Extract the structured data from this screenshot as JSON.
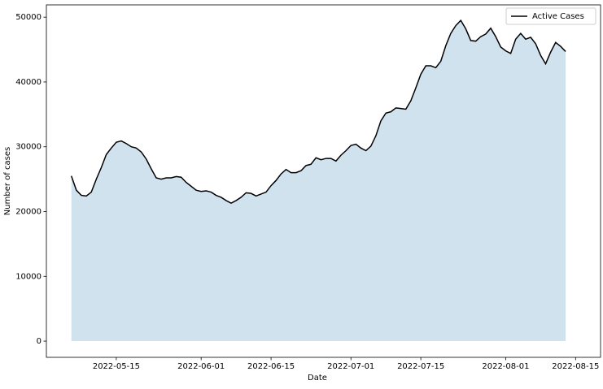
{
  "chart_data": {
    "type": "area-line",
    "x_label": "Date",
    "y_label": "Number of cases",
    "series": [
      {
        "name": "Active Cases",
        "color": "#000000",
        "fill_color": "#d1e2ef",
        "x": [
          "2022-05-06",
          "2022-05-07",
          "2022-05-08",
          "2022-05-09",
          "2022-05-10",
          "2022-05-11",
          "2022-05-12",
          "2022-05-13",
          "2022-05-14",
          "2022-05-15",
          "2022-05-16",
          "2022-05-17",
          "2022-05-18",
          "2022-05-19",
          "2022-05-20",
          "2022-05-21",
          "2022-05-22",
          "2022-05-23",
          "2022-05-24",
          "2022-05-25",
          "2022-05-26",
          "2022-05-27",
          "2022-05-28",
          "2022-05-29",
          "2022-05-30",
          "2022-05-31",
          "2022-06-01",
          "2022-06-02",
          "2022-06-03",
          "2022-06-04",
          "2022-06-05",
          "2022-06-06",
          "2022-06-07",
          "2022-06-08",
          "2022-06-09",
          "2022-06-10",
          "2022-06-11",
          "2022-06-12",
          "2022-06-13",
          "2022-06-14",
          "2022-06-15",
          "2022-06-16",
          "2022-06-17",
          "2022-06-18",
          "2022-06-19",
          "2022-06-20",
          "2022-06-21",
          "2022-06-22",
          "2022-06-23",
          "2022-06-24",
          "2022-06-25",
          "2022-06-26",
          "2022-06-27",
          "2022-06-28",
          "2022-06-29",
          "2022-06-30",
          "2022-07-01",
          "2022-07-02",
          "2022-07-03",
          "2022-07-04",
          "2022-07-05",
          "2022-07-06",
          "2022-07-07",
          "2022-07-08",
          "2022-07-09",
          "2022-07-10",
          "2022-07-11",
          "2022-07-12",
          "2022-07-13",
          "2022-07-14",
          "2022-07-15",
          "2022-07-16",
          "2022-07-17",
          "2022-07-18",
          "2022-07-19",
          "2022-07-20",
          "2022-07-21",
          "2022-07-22",
          "2022-07-23",
          "2022-07-24",
          "2022-07-25",
          "2022-07-26",
          "2022-07-27",
          "2022-07-28",
          "2022-07-29",
          "2022-07-30",
          "2022-07-31",
          "2022-08-01",
          "2022-08-02",
          "2022-08-03",
          "2022-08-04",
          "2022-08-05",
          "2022-08-06",
          "2022-08-07",
          "2022-08-08",
          "2022-08-09",
          "2022-08-10",
          "2022-08-11",
          "2022-08-12",
          "2022-08-13"
        ],
        "values": [
          25500,
          23300,
          22500,
          22400,
          23000,
          25000,
          26800,
          28800,
          29800,
          30700,
          30900,
          30500,
          30000,
          29800,
          29200,
          28100,
          26600,
          25200,
          25000,
          25200,
          25200,
          25400,
          25300,
          24500,
          23900,
          23300,
          23100,
          23200,
          23000,
          22500,
          22200,
          21700,
          21300,
          21700,
          22200,
          22900,
          22800,
          22400,
          22700,
          23000,
          24000,
          24800,
          25800,
          26500,
          26000,
          26000,
          26300,
          27100,
          27300,
          28300,
          28000,
          28200,
          28200,
          27800,
          28700,
          29400,
          30200,
          30400,
          29800,
          29400,
          30100,
          31700,
          34000,
          35200,
          35400,
          36000,
          35900,
          35800,
          37100,
          39100,
          41200,
          42500,
          42500,
          42200,
          43200,
          45600,
          47500,
          48700,
          49500,
          48200,
          46400,
          46300,
          47000,
          47400,
          48300,
          47000,
          45400,
          44800,
          44400,
          46600,
          47500,
          46600,
          46900,
          45900,
          44100,
          42800,
          44600,
          46100,
          45500,
          44700
        ]
      }
    ],
    "xlim": [
      "2022-05-01",
      "2022-08-20"
    ],
    "xticks": [
      "2022-05-15",
      "2022-06-01",
      "2022-06-15",
      "2022-07-01",
      "2022-07-15",
      "2022-08-01",
      "2022-08-15"
    ],
    "ylim": [
      -2500,
      51900
    ],
    "yticks": [
      0,
      10000,
      20000,
      30000,
      40000,
      50000
    ],
    "legend": "upper right"
  }
}
